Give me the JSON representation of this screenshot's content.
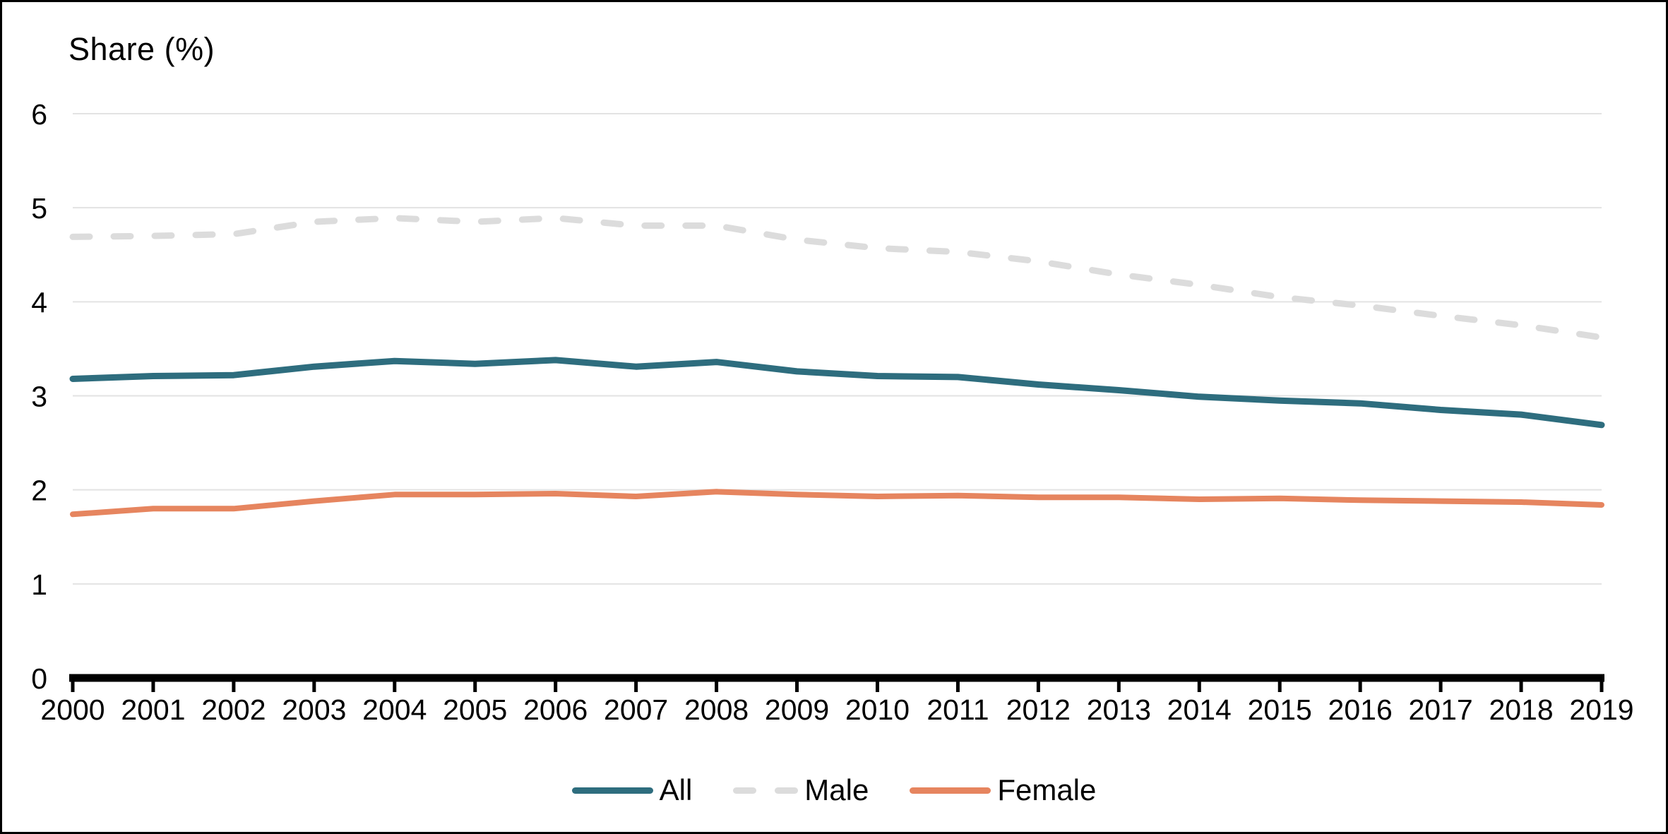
{
  "title": "Share (%)",
  "chart_data": {
    "type": "line",
    "title": "Share (%)",
    "x": [
      2000,
      2001,
      2002,
      2003,
      2004,
      2005,
      2006,
      2007,
      2008,
      2009,
      2010,
      2011,
      2012,
      2013,
      2014,
      2015,
      2016,
      2017,
      2018,
      2019
    ],
    "series": [
      {
        "name": "All",
        "color": "#2e6d7e",
        "style": "solid",
        "values": [
          3.18,
          3.21,
          3.22,
          3.31,
          3.37,
          3.34,
          3.38,
          3.31,
          3.36,
          3.26,
          3.21,
          3.2,
          3.12,
          3.06,
          2.99,
          2.95,
          2.92,
          2.85,
          2.8,
          2.69
        ]
      },
      {
        "name": "Male",
        "color": "#dcdcdc",
        "style": "dashed",
        "values": [
          4.69,
          4.7,
          4.72,
          4.85,
          4.89,
          4.85,
          4.89,
          4.81,
          4.81,
          4.66,
          4.57,
          4.53,
          4.43,
          4.29,
          4.18,
          4.05,
          3.96,
          3.85,
          3.75,
          3.62
        ]
      },
      {
        "name": "Female",
        "color": "#e6855f",
        "style": "solid",
        "values": [
          1.74,
          1.8,
          1.8,
          1.88,
          1.95,
          1.95,
          1.96,
          1.93,
          1.98,
          1.95,
          1.93,
          1.94,
          1.92,
          1.92,
          1.9,
          1.91,
          1.89,
          1.88,
          1.87,
          1.84
        ]
      }
    ],
    "ylabel": "Share (%)",
    "xlabel": "",
    "ylim": [
      0,
      6
    ],
    "yticks": [
      0,
      1,
      2,
      3,
      4,
      5,
      6
    ],
    "grid": true,
    "legend_position": "bottom",
    "colors": {
      "gridline": "#e3e3e3",
      "axis": "#000000",
      "text": "#000000",
      "background": "#ffffff"
    }
  }
}
